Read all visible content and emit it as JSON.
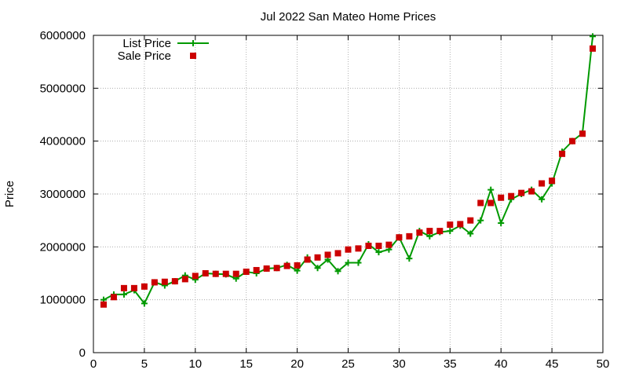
{
  "chart_data": {
    "type": "line",
    "title": "Jul 2022 San Mateo Home Prices",
    "xlabel": "",
    "ylabel": "Price",
    "xlim": [
      0,
      50
    ],
    "ylim": [
      0,
      6000000
    ],
    "xticks": [
      0,
      5,
      10,
      15,
      20,
      25,
      30,
      35,
      40,
      45,
      50
    ],
    "yticks": [
      0,
      1000000,
      2000000,
      3000000,
      4000000,
      5000000,
      6000000
    ],
    "xtick_labels": [
      "0",
      "5",
      "10",
      "15",
      "20",
      "25",
      "30",
      "35",
      "40",
      "45",
      "50"
    ],
    "ytick_labels": [
      "0",
      "1000000",
      "2000000",
      "3000000",
      "4000000",
      "5000000",
      "6000000"
    ],
    "grid": true,
    "legend_position": "top-left",
    "x": [
      1,
      2,
      3,
      4,
      5,
      6,
      7,
      8,
      9,
      10,
      11,
      12,
      13,
      14,
      15,
      16,
      17,
      18,
      19,
      20,
      21,
      22,
      23,
      24,
      25,
      26,
      27,
      28,
      29,
      30,
      31,
      32,
      33,
      34,
      35,
      36,
      37,
      38,
      39,
      40,
      41,
      42,
      43,
      44,
      45,
      46,
      47,
      48,
      49
    ],
    "series": [
      {
        "name": "List Price",
        "style": "line-plus",
        "color": "#009900",
        "values": [
          1000000,
          1100000,
          1100000,
          1180000,
          930000,
          1330000,
          1270000,
          1350000,
          1460000,
          1380000,
          1500000,
          1490000,
          1480000,
          1400000,
          1530000,
          1500000,
          1590000,
          1600000,
          1660000,
          1550000,
          1800000,
          1600000,
          1760000,
          1540000,
          1700000,
          1700000,
          2050000,
          1900000,
          1950000,
          2180000,
          1780000,
          2300000,
          2200000,
          2280000,
          2300000,
          2400000,
          2250000,
          2500000,
          3080000,
          2450000,
          2900000,
          3000000,
          3080000,
          2900000,
          3200000,
          3800000,
          4000000,
          4150000,
          5980000
        ]
      },
      {
        "name": "Sale Price",
        "style": "points",
        "color": "#cc0000",
        "values": [
          910000,
          1050000,
          1220000,
          1220000,
          1250000,
          1330000,
          1340000,
          1350000,
          1390000,
          1450000,
          1500000,
          1490000,
          1490000,
          1490000,
          1530000,
          1560000,
          1590000,
          1600000,
          1640000,
          1650000,
          1760000,
          1800000,
          1850000,
          1880000,
          1950000,
          1970000,
          2020000,
          2020000,
          2040000,
          2180000,
          2200000,
          2270000,
          2300000,
          2300000,
          2420000,
          2430000,
          2500000,
          2830000,
          2830000,
          2930000,
          2960000,
          3020000,
          3050000,
          3200000,
          3250000,
          3760000,
          4000000,
          4140000,
          5750000
        ]
      }
    ]
  }
}
